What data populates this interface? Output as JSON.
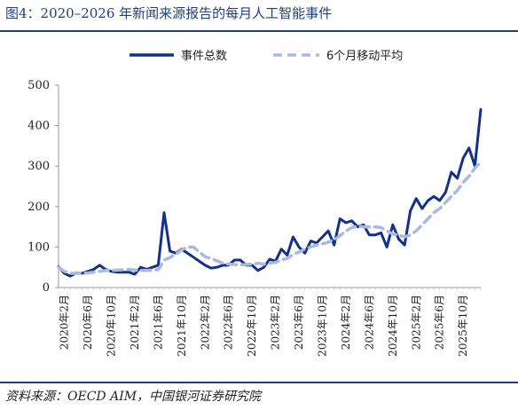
{
  "title": "图4：2020–2026 年新闻来源报告的每月人工智能事件",
  "source": "资料来源：OECD AIM，中国银河证券研究院",
  "colors": {
    "main": "#12318a",
    "ma": "#a9b9e0",
    "rule": "#1f3f80"
  },
  "chart_data": {
    "type": "line",
    "ylim": [
      0,
      500
    ],
    "yticks": [
      0,
      100,
      200,
      300,
      400,
      500
    ],
    "legend_position": "top",
    "x_tick_labels": [
      "2020年2月",
      "2020年6月",
      "2020年10月",
      "2021年2月",
      "2021年6月",
      "2021年10月",
      "2022年2月",
      "2022年6月",
      "2022年10月",
      "2023年2月",
      "2023年6月",
      "2023年10月",
      "2024年2月",
      "2024年6月",
      "2024年10月",
      "2025年2月",
      "2025年6月",
      "2025年10月"
    ],
    "x_start": "2020-01",
    "series": [
      {
        "name": "事件总数",
        "style": "solid",
        "values": [
          52,
          35,
          28,
          36,
          35,
          40,
          45,
          55,
          45,
          40,
          38,
          38,
          38,
          33,
          50,
          45,
          50,
          55,
          185,
          90,
          85,
          95,
          85,
          75,
          65,
          55,
          48,
          50,
          55,
          55,
          68,
          68,
          55,
          55,
          42,
          50,
          70,
          65,
          95,
          80,
          125,
          100,
          85,
          115,
          110,
          125,
          140,
          105,
          170,
          160,
          165,
          150,
          155,
          130,
          130,
          135,
          100,
          155,
          120,
          105,
          190,
          220,
          195,
          215,
          225,
          215,
          235,
          285,
          270,
          320,
          345,
          300,
          440
        ]
      },
      {
        "name": "6个月移动平均",
        "style": "dashed",
        "values": [
          50,
          40,
          35,
          35,
          35,
          36,
          38,
          40,
          42,
          42,
          43,
          44,
          45,
          43,
          42,
          42,
          43,
          44,
          68,
          74,
          83,
          93,
          100,
          100,
          88,
          76,
          72,
          66,
          60,
          58,
          57,
          56,
          57,
          58,
          60,
          58,
          60,
          62,
          68,
          72,
          82,
          88,
          95,
          100,
          105,
          108,
          112,
          118,
          128,
          140,
          148,
          152,
          150,
          150,
          150,
          148,
          140,
          132,
          130,
          125,
          130,
          140,
          155,
          170,
          185,
          195,
          210,
          225,
          240,
          260,
          275,
          295,
          310
        ]
      }
    ]
  }
}
